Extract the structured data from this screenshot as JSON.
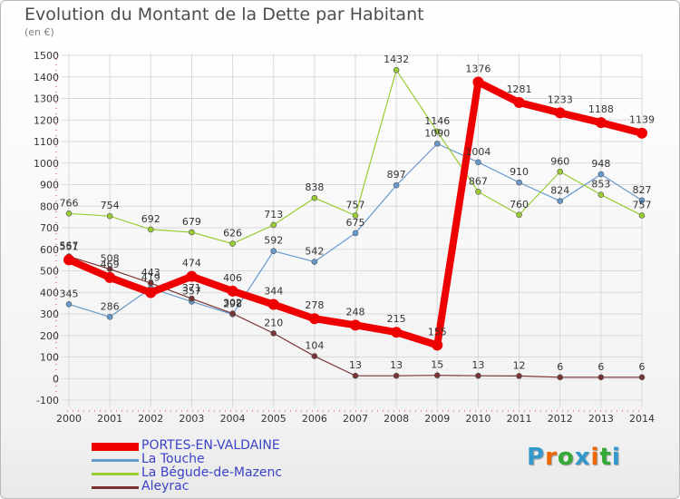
{
  "title": "Evolution du Montant de la Dette par Habitant",
  "subtitle": "(en €)",
  "logo": "Proxiti",
  "chart_data": {
    "type": "line",
    "title": "Evolution du Montant de la Dette par Habitant",
    "subtitle": "(en €)",
    "xlabel": "",
    "ylabel": "",
    "x": [
      "2000",
      "2001",
      "2002",
      "2003",
      "2004",
      "2005",
      "2006",
      "2007",
      "2008",
      "2009",
      "2010",
      "2011",
      "2012",
      "2013",
      "2014"
    ],
    "ylim": [
      -100,
      1500
    ],
    "yticks": [
      "-100",
      "0",
      "100",
      "200",
      "300",
      "400",
      "500",
      "600",
      "700",
      "800",
      "900",
      "1000",
      "1100",
      "1200",
      "1300",
      "1400",
      "1500"
    ],
    "grid": true,
    "legend_position": "bottom-left",
    "series": [
      {
        "name": "PORTES-EN-VALDAINE",
        "color": "#ee0000",
        "values": [
          551,
          469,
          399,
          474,
          406,
          344,
          278,
          248,
          215,
          155,
          1376,
          1281,
          1233,
          1188,
          1139
        ],
        "labels": [
          "551",
          "469",
          "",
          "474",
          "406",
          "344",
          "278",
          "248",
          "215",
          "155",
          "1376",
          "1281",
          "1233",
          "1188",
          "1139"
        ]
      },
      {
        "name": "La Touche",
        "color": "#6699cc",
        "values": [
          345,
          286,
          419,
          357,
          298,
          592,
          542,
          675,
          897,
          1090,
          1004,
          910,
          824,
          948,
          827
        ],
        "labels": [
          "345",
          "286",
          "419",
          "357",
          "298",
          "592",
          "542",
          "675",
          "897",
          "1090",
          "1004",
          "910",
          "824",
          "948",
          "827"
        ]
      },
      {
        "name": "La Bégude-de-Mazenc",
        "color": "#99cc33",
        "values": [
          766,
          754,
          692,
          679,
          626,
          713,
          838,
          757,
          1432,
          1146,
          867,
          760,
          960,
          853,
          757
        ],
        "labels": [
          "766",
          "754",
          "692",
          "679",
          "626",
          "713",
          "838",
          "757",
          "1432",
          "1146",
          "867",
          "760",
          "960",
          "853",
          "757"
        ]
      },
      {
        "name": "Aleyrac",
        "color": "#7a3333",
        "values": [
          567,
          508,
          443,
          371,
          302,
          210,
          104,
          13,
          13,
          15,
          13,
          12,
          6,
          6,
          6
        ],
        "labels": [
          "567",
          "508",
          "443",
          "371",
          "302",
          "210",
          "104",
          "13",
          "13",
          "15",
          "13",
          "12",
          "6",
          "6",
          "6"
        ]
      }
    ]
  }
}
